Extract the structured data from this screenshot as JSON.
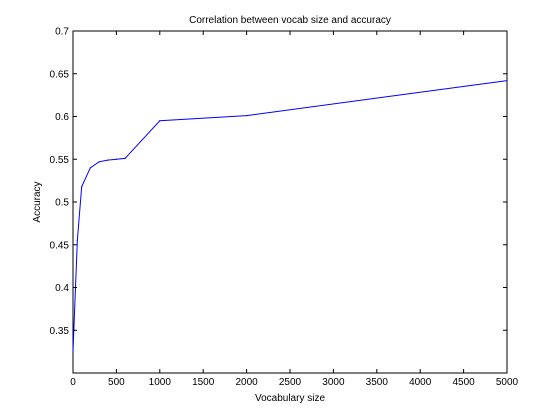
{
  "chart_data": {
    "type": "line",
    "title": "Correlation between vocab size and accuracy",
    "xlabel": "Vocabulary size",
    "ylabel": "Accuracy",
    "xlim": [
      0,
      5000
    ],
    "ylim": [
      0.3,
      0.7
    ],
    "grid": false,
    "line_color": "#0000ff",
    "x_ticks": [
      0,
      500,
      1000,
      1500,
      2000,
      2500,
      3000,
      3500,
      4000,
      4500,
      5000
    ],
    "x_tick_labels": [
      "0",
      "500",
      "1000",
      "1500",
      "2000",
      "2500",
      "3000",
      "3500",
      "4000",
      "4500",
      "5000"
    ],
    "y_ticks": [
      0.35,
      0.4,
      0.45,
      0.5,
      0.55,
      0.6,
      0.65,
      0.7
    ],
    "y_tick_labels": [
      "0.35",
      "0.4",
      "0.45",
      "0.5",
      "0.55",
      "0.6",
      "0.65",
      "0.7"
    ],
    "series": [
      {
        "x": [
          0,
          50,
          100,
          200,
          300,
          400,
          500,
          600,
          1000,
          2000,
          5000
        ],
        "y": [
          0.325,
          0.455,
          0.518,
          0.54,
          0.547,
          0.549,
          0.55,
          0.551,
          0.595,
          0.601,
          0.642
        ]
      }
    ]
  }
}
